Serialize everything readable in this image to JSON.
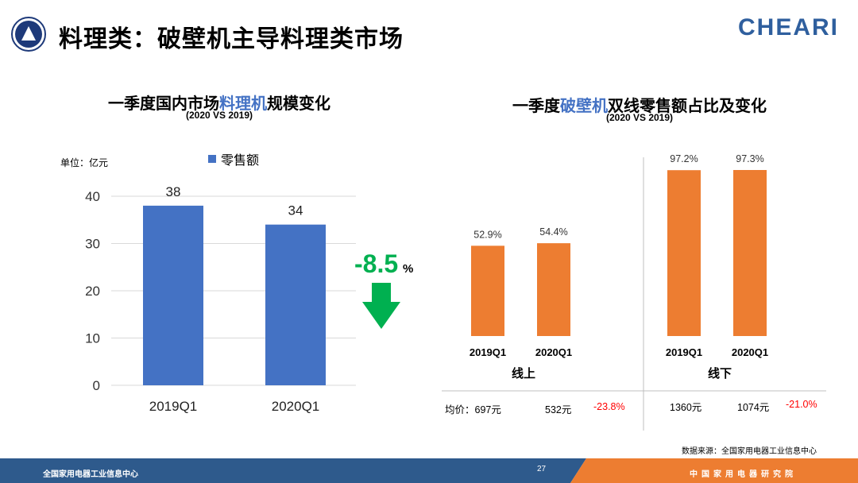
{
  "header": {
    "title": "料理类：破壁机主导料理类市场",
    "brand": "CHEARI"
  },
  "colors": {
    "blue_bar": "#4472c4",
    "orange_bar": "#ed7d31",
    "green_change": "#00b050",
    "negative": "#ff0000",
    "footer_blue": "#2e5a8c",
    "footer_orange": "#ed7d31"
  },
  "left_chart": {
    "title_pre": "一季度国内市场",
    "title_hl": "料理机",
    "title_post": "规模变化",
    "subtitle": "(2020 VS 2019)",
    "unit": "单位：亿元",
    "change_value": "-8.5",
    "change_unit": "%",
    "arrow_icon": "down-arrow-icon"
  },
  "right_chart": {
    "title_pre": "一季度",
    "title_hl": "破壁机",
    "title_post": "双线零售额占比及变化",
    "subtitle": "(2020 VS 2019)",
    "price_label": "均价：",
    "online_prices": [
      "697元",
      "532元"
    ],
    "online_change": "-23.8%",
    "offline_prices": [
      "1360元",
      "1074元"
    ],
    "offline_change": "-21.0%"
  },
  "chart_data": [
    {
      "type": "bar",
      "title": "一季度国内市场料理机规模变化",
      "subtitle": "(2020 VS 2019)",
      "ylabel": "单位：亿元",
      "categories": [
        "2019Q1",
        "2020Q1"
      ],
      "series": [
        {
          "name": "零售额",
          "values": [
            38,
            34
          ]
        }
      ],
      "data_labels": [
        "38",
        "34"
      ],
      "yticks": [
        "0",
        "10",
        "20",
        "30",
        "40"
      ],
      "ylim": [
        0,
        40
      ],
      "grid": true,
      "legend": "top-center"
    },
    {
      "type": "bar",
      "title": "一季度破壁机双线零售额占比及变化",
      "subtitle": "(2020 VS 2019)",
      "groups": [
        {
          "name": "线上",
          "categories": [
            "2019Q1",
            "2020Q1"
          ],
          "values": [
            52.9,
            54.4
          ],
          "labels": [
            "52.9%",
            "54.4%"
          ]
        },
        {
          "name": "线下",
          "categories": [
            "2019Q1",
            "2020Q1"
          ],
          "values": [
            97.2,
            97.3
          ],
          "labels": [
            "97.2%",
            "97.3%"
          ]
        }
      ],
      "grid": false
    }
  ],
  "footer": {
    "left_text": "全国家用电器工业信息中心",
    "page_number": "27",
    "right_text": "中国家用电器研究院",
    "source": "数据来源：全国家用电器工业信息中心"
  }
}
